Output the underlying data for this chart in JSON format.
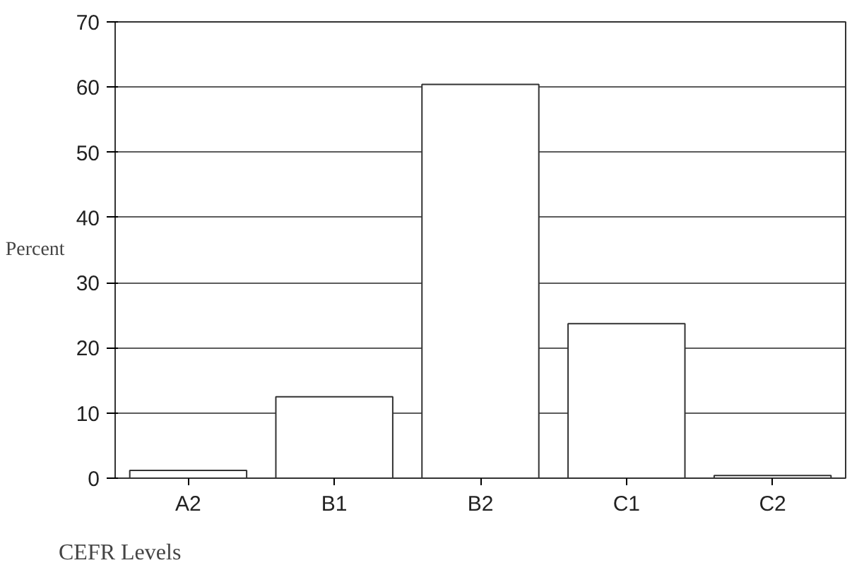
{
  "chart_data": {
    "type": "bar",
    "categories": [
      "A2",
      "B1",
      "B2",
      "C1",
      "C2"
    ],
    "values": [
      1.2,
      12.5,
      60.4,
      23.7,
      0.4
    ],
    "color": "#ffffff",
    "ylabel": "Percent",
    "xlabel": "CEFR Levels",
    "ylim": [
      0,
      70
    ],
    "yticks": [
      0,
      10,
      20,
      30,
      40,
      50,
      60,
      70
    ],
    "grid": "y"
  }
}
